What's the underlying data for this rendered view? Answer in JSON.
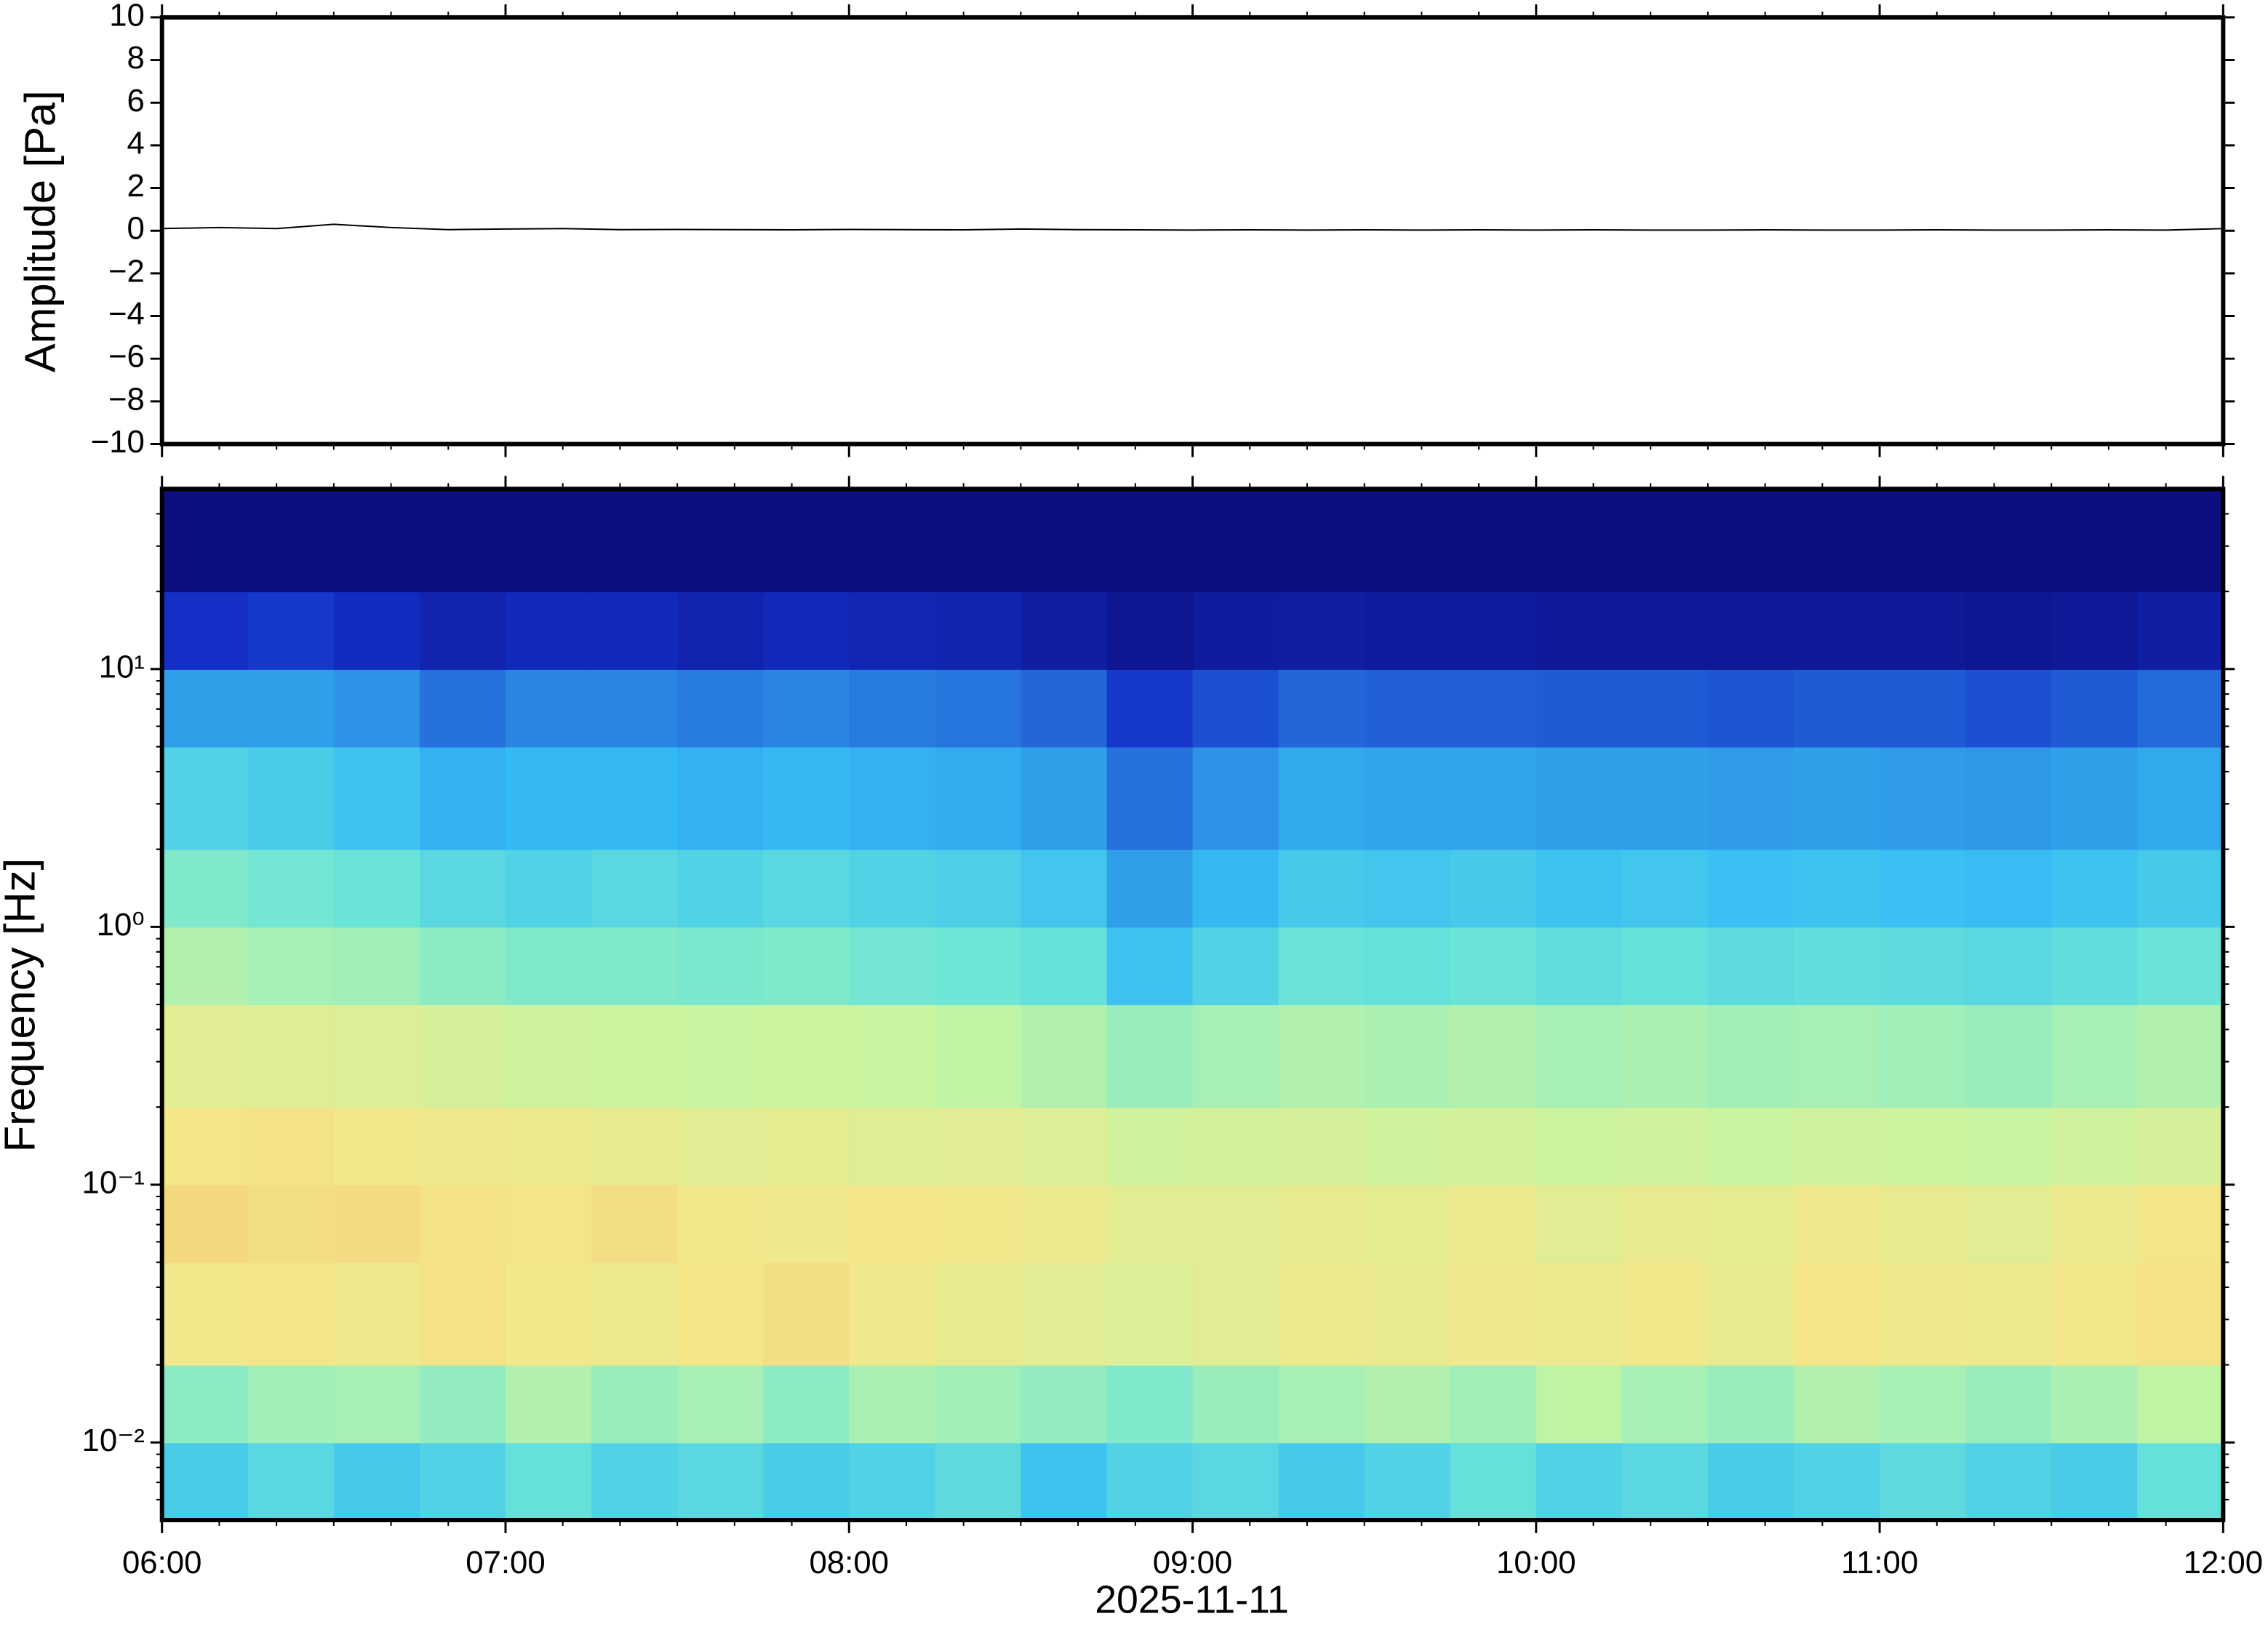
{
  "chart_data": [
    {
      "type": "line",
      "ylabel": "Amplitude [Pa]",
      "color": "#000000",
      "x": [
        "06:00",
        "06:10",
        "06:20",
        "06:30",
        "06:40",
        "06:50",
        "07:00",
        "07:10",
        "07:20",
        "07:30",
        "07:40",
        "07:50",
        "08:00",
        "08:10",
        "08:20",
        "08:30",
        "08:40",
        "08:50",
        "09:00",
        "09:10",
        "09:20",
        "09:30",
        "09:40",
        "09:50",
        "10:00",
        "10:10",
        "10:20",
        "10:30",
        "10:40",
        "10:50",
        "11:00",
        "11:10",
        "11:20",
        "11:30",
        "11:40",
        "11:50",
        "12:00"
      ],
      "values": [
        0.1,
        0.15,
        0.1,
        0.3,
        0.15,
        0.05,
        0.08,
        0.1,
        0.05,
        0.06,
        0.05,
        0.04,
        0.06,
        0.05,
        0.04,
        0.08,
        0.05,
        0.04,
        0.03,
        0.04,
        0.03,
        0.04,
        0.03,
        0.04,
        0.03,
        0.04,
        0.03,
        0.03,
        0.04,
        0.03,
        0.03,
        0.04,
        0.03,
        0.03,
        0.04,
        0.03,
        0.1
      ],
      "xlim": [
        "06:00",
        "12:00"
      ],
      "xticks": [
        "06:00",
        "07:00",
        "08:00",
        "09:00",
        "10:00",
        "11:00",
        "12:00"
      ],
      "ylim": [
        -10,
        10
      ],
      "yticks": [
        {
          "value": -10,
          "label": "−10"
        },
        {
          "value": -8,
          "label": "−8"
        },
        {
          "value": -6,
          "label": "−6"
        },
        {
          "value": -4,
          "label": "−4"
        },
        {
          "value": -2,
          "label": "−2"
        },
        0,
        2,
        4,
        6,
        8,
        10
      ]
    },
    {
      "type": "heatmap",
      "ylabel": "Frequency [Hz]",
      "xlabel": "2025-11-11",
      "log_y": true,
      "x_edges": [
        "06:00",
        "06:15",
        "06:30",
        "06:45",
        "07:00",
        "07:15",
        "07:30",
        "07:45",
        "08:00",
        "08:15",
        "08:30",
        "08:45",
        "09:00",
        "09:15",
        "09:30",
        "09:45",
        "10:00",
        "10:15",
        "10:30",
        "10:45",
        "11:00",
        "11:15",
        "11:30",
        "11:45",
        "12:00"
      ],
      "y_edges": [
        0.005,
        0.01,
        0.02,
        0.05,
        0.1,
        0.2,
        0.5,
        1,
        2,
        5,
        10,
        20,
        50
      ],
      "z": [
        [
          0.48,
          0.52,
          0.47,
          0.5,
          0.55,
          0.5,
          0.52,
          0.48,
          0.5,
          0.53,
          0.45,
          0.5,
          0.52,
          0.47,
          0.5,
          0.55,
          0.5,
          0.52,
          0.48,
          0.5,
          0.53,
          0.5,
          0.48,
          0.55
        ],
        [
          0.62,
          0.65,
          0.66,
          0.63,
          0.68,
          0.64,
          0.66,
          0.62,
          0.67,
          0.65,
          0.63,
          0.6,
          0.64,
          0.66,
          0.68,
          0.65,
          0.7,
          0.66,
          0.64,
          0.68,
          0.66,
          0.64,
          0.67,
          0.7
        ],
        [
          0.85,
          0.86,
          0.84,
          0.87,
          0.85,
          0.83,
          0.86,
          0.88,
          0.84,
          0.82,
          0.8,
          0.78,
          0.8,
          0.83,
          0.82,
          0.84,
          0.83,
          0.85,
          0.82,
          0.86,
          0.84,
          0.83,
          0.85,
          0.87
        ],
        [
          0.9,
          0.88,
          0.89,
          0.87,
          0.86,
          0.88,
          0.85,
          0.84,
          0.86,
          0.85,
          0.83,
          0.8,
          0.8,
          0.82,
          0.81,
          0.83,
          0.8,
          0.82,
          0.81,
          0.84,
          0.82,
          0.8,
          0.83,
          0.86
        ],
        [
          0.86,
          0.87,
          0.85,
          0.84,
          0.83,
          0.82,
          0.8,
          0.81,
          0.79,
          0.8,
          0.78,
          0.74,
          0.75,
          0.76,
          0.74,
          0.75,
          0.73,
          0.74,
          0.72,
          0.74,
          0.73,
          0.72,
          0.74,
          0.76
        ],
        [
          0.8,
          0.79,
          0.78,
          0.76,
          0.74,
          0.73,
          0.72,
          0.73,
          0.72,
          0.7,
          0.68,
          0.64,
          0.66,
          0.68,
          0.67,
          0.68,
          0.66,
          0.67,
          0.65,
          0.66,
          0.65,
          0.64,
          0.66,
          0.68
        ],
        [
          0.68,
          0.66,
          0.65,
          0.62,
          0.6,
          0.6,
          0.59,
          0.6,
          0.58,
          0.57,
          0.55,
          0.45,
          0.5,
          0.56,
          0.55,
          0.56,
          0.54,
          0.55,
          0.53,
          0.54,
          0.53,
          0.52,
          0.54,
          0.56
        ],
        [
          0.6,
          0.58,
          0.56,
          0.52,
          0.5,
          0.52,
          0.5,
          0.52,
          0.5,
          0.49,
          0.46,
          0.36,
          0.42,
          0.47,
          0.46,
          0.47,
          0.45,
          0.46,
          0.44,
          0.45,
          0.44,
          0.43,
          0.45,
          0.47
        ],
        [
          0.5,
          0.48,
          0.45,
          0.4,
          0.42,
          0.42,
          0.4,
          0.42,
          0.4,
          0.39,
          0.36,
          0.26,
          0.33,
          0.38,
          0.37,
          0.37,
          0.36,
          0.36,
          0.35,
          0.36,
          0.35,
          0.34,
          0.36,
          0.38
        ],
        [
          0.36,
          0.36,
          0.33,
          0.26,
          0.3,
          0.3,
          0.28,
          0.3,
          0.28,
          0.27,
          0.24,
          0.16,
          0.2,
          0.24,
          0.23,
          0.23,
          0.22,
          0.22,
          0.21,
          0.22,
          0.22,
          0.2,
          0.22,
          0.25
        ],
        [
          0.14,
          0.16,
          0.13,
          0.1,
          0.12,
          0.12,
          0.1,
          0.12,
          0.11,
          0.1,
          0.08,
          0.05,
          0.07,
          0.08,
          0.07,
          0.07,
          0.06,
          0.06,
          0.06,
          0.06,
          0.06,
          0.05,
          0.06,
          0.08
        ],
        [
          0.02,
          0.02,
          0.02,
          0.02,
          0.02,
          0.02,
          0.02,
          0.02,
          0.02,
          0.02,
          0.02,
          0.02,
          0.02,
          0.02,
          0.02,
          0.02,
          0.02,
          0.02,
          0.02,
          0.02,
          0.02,
          0.02,
          0.02,
          0.02
        ]
      ],
      "zlim": [
        0,
        1
      ],
      "colormap": [
        "#0c0873",
        "#1330c8",
        "#2a7fe0",
        "#36bdf4",
        "#6ee6d6",
        "#c8f5a0",
        "#f4e68a",
        "#f6b46a"
      ],
      "xlim": [
        "06:00",
        "12:00"
      ],
      "xticks": [
        "06:00",
        "07:00",
        "08:00",
        "09:00",
        "10:00",
        "11:00",
        "12:00"
      ],
      "ylim": [
        0.005,
        50
      ],
      "yticks": [
        {
          "value": 0.01,
          "label": "10⁻²"
        },
        {
          "value": 0.1,
          "label": "10⁻¹"
        },
        {
          "value": 1,
          "label": "10⁰"
        },
        {
          "value": 10,
          "label": "10¹"
        }
      ]
    }
  ]
}
